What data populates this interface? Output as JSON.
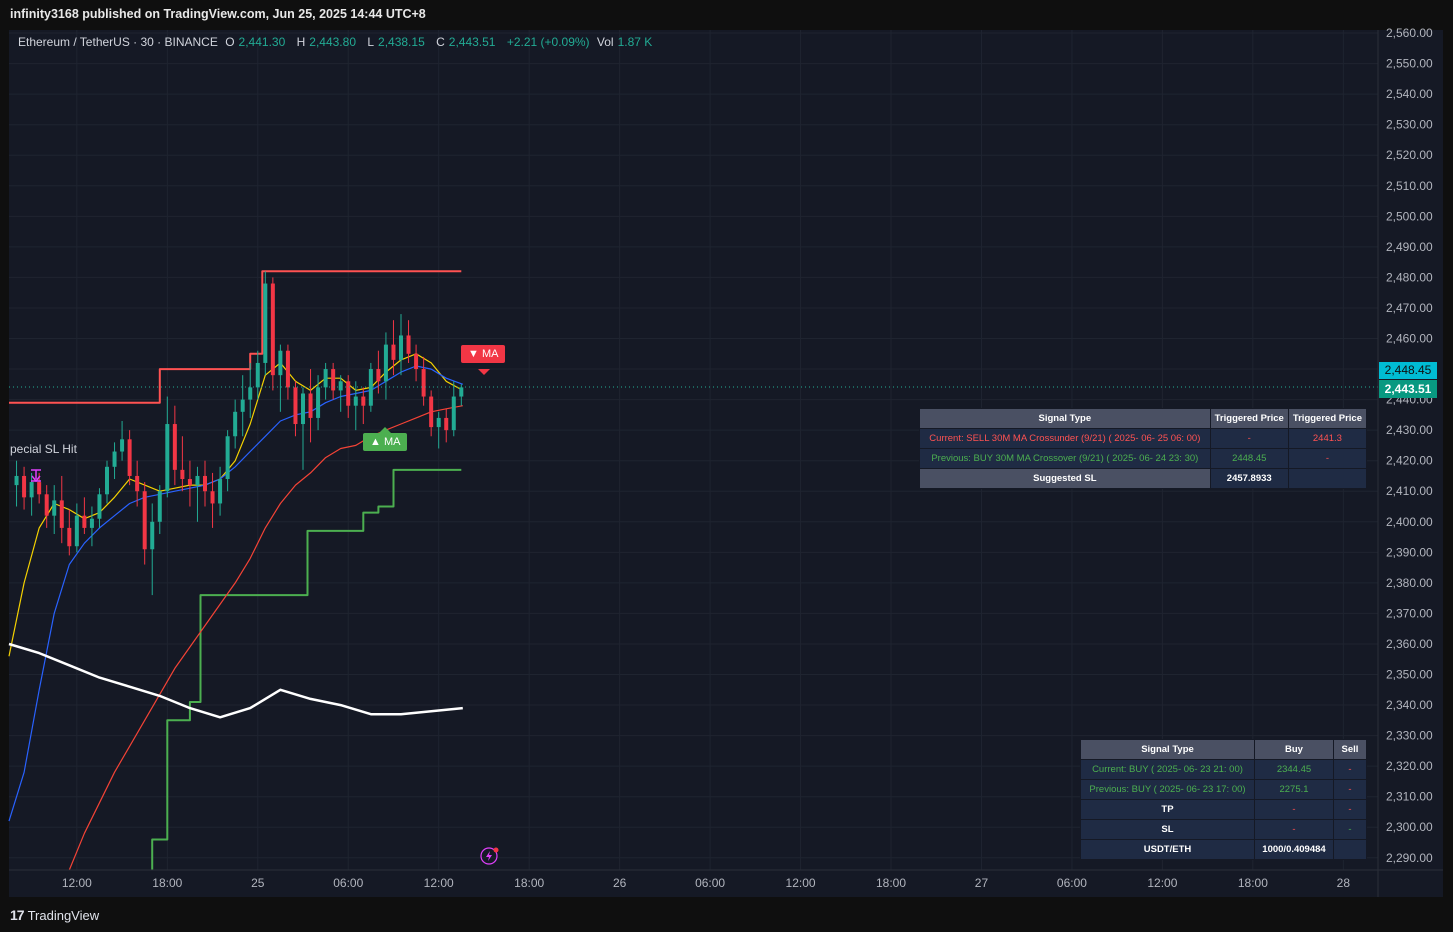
{
  "header": {
    "published_text": "infinity3168 published on TradingView.com, Jun 25, 2025 14:44 UTC+8"
  },
  "legend": {
    "symbol": "Ethereum / TetherUS · 30 · BINANCE",
    "o_label": "O",
    "o_value": "2,441.30",
    "h_label": "H",
    "h_value": "2,443.80",
    "l_label": "L",
    "l_value": "2,438.15",
    "c_label": "C",
    "c_value": "2,443.51",
    "change": "+2.21 (+0.09%)",
    "vol_label": "Vol",
    "vol_value": "1.87 K"
  },
  "signal_table_1": {
    "headers": [
      "Signal Type",
      "Triggered Price",
      "Triggered Price"
    ],
    "rows": [
      [
        "Current: SELL 30M MA Crossunder (9/21) ( 2025- 06- 25  06: 00)",
        "-",
        "2441.3"
      ],
      [
        "Previous: BUY 30M MA Crossover (9/21) ( 2025- 06- 24  23: 30)",
        "2448.45",
        "-"
      ]
    ],
    "footer_label": "Suggested SL",
    "footer_value": "2457.8933"
  },
  "signal_table_2": {
    "headers": [
      "Signal Type",
      "Buy",
      "Sell"
    ],
    "rows": [
      [
        "Current: BUY ( 2025- 06- 23  21: 00)",
        "2344.45",
        "-"
      ],
      [
        "Previous: BUY ( 2025- 06- 23  17: 00)",
        "2275.1",
        "-"
      ],
      [
        "TP",
        "-",
        "-"
      ],
      [
        "SL",
        "-",
        "-"
      ],
      [
        "USDT/ETH",
        "1000/0.409484",
        ""
      ]
    ]
  },
  "annotations": {
    "sell_tag": "▼ MA",
    "buy_tag": "▲ MA",
    "special_sl": "pecial SL Hit"
  },
  "price_badges": {
    "upper": "2,448.45",
    "last": "2,443.51"
  },
  "footer": {
    "brand": "TradingView"
  },
  "colors": {
    "up": "#22ab94",
    "down": "#f23645",
    "ma_fast": "#f5d200",
    "ma_mid": "#2962ff",
    "ma_slow": "#f44336",
    "long_ma": "#ffffff",
    "sl_line": "#ff5252",
    "support_line": "#4caf50",
    "badge_upper": "#00bcd4",
    "badge_last": "#089981"
  },
  "chart_data": {
    "type": "candlestick",
    "title": "Ethereum / TetherUS · 30 · BINANCE",
    "y_ticks": [
      "2,560.00",
      "2,550.00",
      "2,540.00",
      "2,530.00",
      "2,520.00",
      "2,510.00",
      "2,500.00",
      "2,490.00",
      "2,480.00",
      "2,470.00",
      "2,460.00",
      "2,450.00",
      "2,440.00",
      "2,430.00",
      "2,420.00",
      "2,410.00",
      "2,400.00",
      "2,390.00",
      "2,380.00",
      "2,370.00",
      "2,360.00",
      "2,350.00",
      "2,340.00",
      "2,330.00",
      "2,320.00",
      "2,310.00",
      "2,300.00",
      "2,290.00"
    ],
    "ylim": [
      2286,
      2561
    ],
    "x_ticks": [
      "12:00",
      "18:00",
      "25",
      "06:00",
      "12:00",
      "18:00",
      "26",
      "06:00",
      "12:00",
      "18:00",
      "27",
      "06:00",
      "12:00",
      "18:00",
      "28"
    ],
    "x_tick_hours": [
      12,
      18,
      24,
      30,
      36,
      42,
      48,
      54,
      60,
      66,
      72,
      78,
      84,
      90,
      96
    ],
    "xlim_hours": [
      7.5,
      98.3
    ],
    "candles": [
      [
        8.0,
        2412,
        2420,
        2405,
        2415
      ],
      [
        8.5,
        2415,
        2418,
        2404,
        2408
      ],
      [
        9.0,
        2408,
        2416,
        2402,
        2413
      ],
      [
        9.5,
        2413,
        2416,
        2406,
        2409
      ],
      [
        10.0,
        2409,
        2412,
        2398,
        2402
      ],
      [
        10.5,
        2402,
        2412,
        2396,
        2407
      ],
      [
        11.0,
        2407,
        2415,
        2393,
        2398
      ],
      [
        11.5,
        2398,
        2404,
        2389,
        2392
      ],
      [
        12.0,
        2392,
        2406,
        2390,
        2402
      ],
      [
        12.5,
        2402,
        2408,
        2396,
        2398
      ],
      [
        13.0,
        2398,
        2405,
        2392,
        2401
      ],
      [
        13.5,
        2401,
        2411,
        2398,
        2409
      ],
      [
        14.0,
        2409,
        2420,
        2406,
        2418
      ],
      [
        14.5,
        2418,
        2426,
        2414,
        2423
      ],
      [
        15.0,
        2423,
        2433,
        2420,
        2427
      ],
      [
        15.5,
        2427,
        2430,
        2412,
        2415
      ],
      [
        16.0,
        2415,
        2420,
        2405,
        2410
      ],
      [
        16.5,
        2410,
        2413,
        2386,
        2391
      ],
      [
        17.0,
        2391,
        2406,
        2376,
        2400
      ],
      [
        17.5,
        2400,
        2412,
        2396,
        2410
      ],
      [
        18.0,
        2410,
        2441,
        2408,
        2432
      ],
      [
        18.5,
        2432,
        2438,
        2412,
        2417
      ],
      [
        19.0,
        2417,
        2428,
        2410,
        2414
      ],
      [
        19.5,
        2414,
        2420,
        2405,
        2412
      ],
      [
        20.0,
        2412,
        2418,
        2400,
        2415
      ],
      [
        20.5,
        2415,
        2420,
        2405,
        2410
      ],
      [
        21.0,
        2410,
        2416,
        2398,
        2406
      ],
      [
        21.5,
        2406,
        2418,
        2402,
        2414
      ],
      [
        22.0,
        2414,
        2430,
        2410,
        2428
      ],
      [
        22.5,
        2428,
        2440,
        2424,
        2436
      ],
      [
        23.0,
        2436,
        2448,
        2428,
        2440
      ],
      [
        23.5,
        2440,
        2452,
        2434,
        2444
      ],
      [
        24.0,
        2444,
        2456,
        2440,
        2452
      ],
      [
        24.5,
        2452,
        2482,
        2448,
        2478
      ],
      [
        25.0,
        2478,
        2480,
        2443,
        2448
      ],
      [
        25.5,
        2448,
        2458,
        2436,
        2456
      ],
      [
        26.0,
        2456,
        2458,
        2440,
        2444
      ],
      [
        26.5,
        2444,
        2446,
        2428,
        2432
      ],
      [
        27.0,
        2432,
        2444,
        2417,
        2442
      ],
      [
        27.5,
        2442,
        2450,
        2426,
        2434
      ],
      [
        28.0,
        2434,
        2448,
        2430,
        2444
      ],
      [
        28.5,
        2444,
        2452,
        2440,
        2450
      ],
      [
        29.0,
        2450,
        2452,
        2440,
        2443
      ],
      [
        29.5,
        2443,
        2448,
        2436,
        2446
      ],
      [
        30.0,
        2446,
        2448,
        2434,
        2438
      ],
      [
        30.5,
        2438,
        2446,
        2430,
        2441
      ],
      [
        31.0,
        2441,
        2444,
        2432,
        2438
      ],
      [
        31.5,
        2438,
        2452,
        2436,
        2450
      ],
      [
        32.0,
        2450,
        2456,
        2442,
        2446
      ],
      [
        32.5,
        2446,
        2462,
        2440,
        2458
      ],
      [
        33.0,
        2458,
        2466,
        2448,
        2453
      ],
      [
        33.5,
        2453,
        2468,
        2448,
        2461
      ],
      [
        34.0,
        2461,
        2466,
        2452,
        2455
      ],
      [
        34.5,
        2455,
        2458,
        2446,
        2450
      ],
      [
        35.0,
        2450,
        2454,
        2438,
        2441
      ],
      [
        35.5,
        2441,
        2443,
        2428,
        2431
      ],
      [
        36.0,
        2431,
        2436,
        2424,
        2434
      ],
      [
        36.5,
        2434,
        2437,
        2426,
        2430
      ],
      [
        37.0,
        2430,
        2446,
        2428,
        2441
      ],
      [
        37.5,
        2441,
        2445,
        2438,
        2444
      ]
    ],
    "series": [
      {
        "name": "MA",
        "color": "#f5d200",
        "points": [
          [
            7.5,
            2356
          ],
          [
            8.5,
            2380
          ],
          [
            9.5,
            2398
          ],
          [
            10.5,
            2406
          ],
          [
            11.5,
            2404
          ],
          [
            12.5,
            2401
          ],
          [
            13.5,
            2403
          ],
          [
            14.5,
            2408
          ],
          [
            15.5,
            2414
          ],
          [
            16.5,
            2412
          ],
          [
            17.5,
            2410
          ],
          [
            18.5,
            2411
          ],
          [
            19.5,
            2412
          ],
          [
            20.5,
            2412
          ],
          [
            21.5,
            2414
          ],
          [
            22.5,
            2420
          ],
          [
            23.5,
            2432
          ],
          [
            24.5,
            2448
          ],
          [
            25.5,
            2452
          ],
          [
            26.5,
            2446
          ],
          [
            27.5,
            2443
          ],
          [
            28.5,
            2447
          ],
          [
            29.5,
            2447
          ],
          [
            30.5,
            2443
          ],
          [
            31.5,
            2444
          ],
          [
            32.5,
            2449
          ],
          [
            33.5,
            2453
          ],
          [
            34.5,
            2455
          ],
          [
            35.5,
            2452
          ],
          [
            36.5,
            2446
          ],
          [
            37.6,
            2443
          ]
        ]
      },
      {
        "name": "",
        "color": "#2962ff",
        "points": [
          [
            7.5,
            2302
          ],
          [
            8.5,
            2318
          ],
          [
            9.5,
            2345
          ],
          [
            10.5,
            2370
          ],
          [
            11.5,
            2386
          ],
          [
            12.5,
            2393
          ],
          [
            13.5,
            2398
          ],
          [
            14.5,
            2402
          ],
          [
            15.5,
            2406
          ],
          [
            16.5,
            2408
          ],
          [
            17.5,
            2409
          ],
          [
            18.5,
            2410
          ],
          [
            19.5,
            2411
          ],
          [
            20.5,
            2412
          ],
          [
            21.5,
            2414
          ],
          [
            22.5,
            2418
          ],
          [
            23.5,
            2423
          ],
          [
            24.5,
            2428
          ],
          [
            25.5,
            2433
          ],
          [
            26.5,
            2435
          ],
          [
            27.5,
            2436
          ],
          [
            28.5,
            2439
          ],
          [
            29.5,
            2441
          ],
          [
            30.5,
            2442
          ],
          [
            31.5,
            2443
          ],
          [
            32.5,
            2446
          ],
          [
            33.5,
            2449
          ],
          [
            34.5,
            2451
          ],
          [
            35.5,
            2450
          ],
          [
            36.5,
            2447
          ],
          [
            37.6,
            2445
          ]
        ]
      },
      {
        "name": "",
        "color": "#f44336",
        "points": [
          [
            11.5,
            2286
          ],
          [
            12.5,
            2298
          ],
          [
            14.5,
            2318
          ],
          [
            16.5,
            2335
          ],
          [
            18.5,
            2352
          ],
          [
            20.5,
            2366
          ],
          [
            22.5,
            2380
          ],
          [
            23.5,
            2388
          ],
          [
            24.5,
            2398
          ],
          [
            25.5,
            2406
          ],
          [
            26.5,
            2412
          ],
          [
            27.5,
            2416
          ],
          [
            28.5,
            2421
          ],
          [
            29.5,
            2424
          ],
          [
            30.5,
            2425
          ],
          [
            31.5,
            2428
          ],
          [
            32.5,
            2430
          ],
          [
            33.5,
            2432
          ],
          [
            34.5,
            2434
          ],
          [
            35.5,
            2436
          ],
          [
            36.5,
            2437
          ],
          [
            37.6,
            2438
          ]
        ]
      },
      {
        "name": "",
        "color": "#ffffff",
        "points": [
          [
            7.5,
            2360
          ],
          [
            9.5,
            2357
          ],
          [
            11.5,
            2353
          ],
          [
            13.5,
            2349
          ],
          [
            15.5,
            2346
          ],
          [
            17.5,
            2343
          ],
          [
            19.5,
            2339
          ],
          [
            21.5,
            2336
          ],
          [
            23.5,
            2339
          ],
          [
            25.5,
            2345
          ],
          [
            27.5,
            2342
          ],
          [
            29.5,
            2340
          ],
          [
            31.5,
            2337
          ],
          [
            33.5,
            2337
          ],
          [
            35.5,
            2338
          ],
          [
            37.6,
            2339
          ]
        ]
      }
    ],
    "sl_line_points": [
      [
        7.5,
        2439
      ],
      [
        17.5,
        2439
      ],
      [
        17.5,
        2450
      ],
      [
        23.5,
        2450
      ],
      [
        23.5,
        2455
      ],
      [
        24.3,
        2455
      ],
      [
        24.3,
        2482
      ],
      [
        37.5,
        2482
      ]
    ],
    "support_line_points": [
      [
        17.0,
        2286
      ],
      [
        17.0,
        2296
      ],
      [
        18.0,
        2296
      ],
      [
        18.0,
        2335
      ],
      [
        19.5,
        2335
      ],
      [
        19.5,
        2341
      ],
      [
        20.2,
        2341
      ],
      [
        20.2,
        2376
      ],
      [
        27.3,
        2376
      ],
      [
        27.3,
        2397
      ],
      [
        31.0,
        2397
      ],
      [
        31.0,
        2403
      ],
      [
        32.0,
        2403
      ],
      [
        32.0,
        2405
      ],
      [
        33.0,
        2405
      ],
      [
        33.0,
        2417
      ],
      [
        37.5,
        2417
      ]
    ],
    "current_price": 2443.51,
    "marker_price": 2448.45
  }
}
